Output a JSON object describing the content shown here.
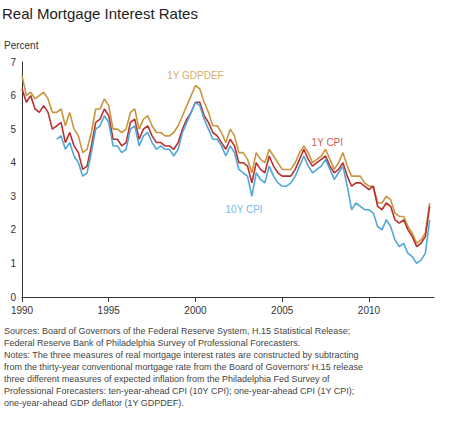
{
  "chart_data": {
    "type": "line",
    "title": "Real Mortgage Interest Rates",
    "y_label": "Percent",
    "x": [
      1990,
      1990.25,
      1990.5,
      1990.75,
      1991,
      1991.25,
      1991.5,
      1991.75,
      1992,
      1992.25,
      1992.5,
      1992.75,
      1993,
      1993.25,
      1993.5,
      1993.75,
      1994,
      1994.25,
      1994.5,
      1994.75,
      1995,
      1995.25,
      1995.5,
      1995.75,
      1996,
      1996.25,
      1996.5,
      1996.75,
      1997,
      1997.25,
      1997.5,
      1997.75,
      1998,
      1998.25,
      1998.5,
      1998.75,
      1999,
      1999.25,
      1999.5,
      1999.75,
      2000,
      2000.25,
      2000.5,
      2000.75,
      2001,
      2001.25,
      2001.5,
      2001.75,
      2002,
      2002.25,
      2002.5,
      2002.75,
      2003,
      2003.25,
      2003.5,
      2003.75,
      2004,
      2004.25,
      2004.5,
      2004.75,
      2005,
      2005.25,
      2005.5,
      2005.75,
      2006,
      2006.25,
      2006.5,
      2006.75,
      2007,
      2007.25,
      2007.5,
      2007.75,
      2008,
      2008.25,
      2008.5,
      2008.75,
      2009,
      2009.25,
      2009.5,
      2009.75,
      2010,
      2010.25,
      2010.5,
      2010.75,
      2011,
      2011.25,
      2011.5,
      2011.75,
      2012,
      2012.25,
      2012.5,
      2012.75,
      2013,
      2013.25,
      2013.5
    ],
    "series": [
      {
        "name": "1Y GDPDEF",
        "color": "#c8963e",
        "values": [
          6.6,
          6.0,
          6.1,
          5.9,
          6.0,
          6.1,
          5.9,
          5.5,
          5.5,
          5.6,
          5.1,
          5.5,
          5.0,
          4.8,
          4.3,
          4.4,
          4.9,
          5.6,
          5.6,
          5.9,
          5.7,
          5.0,
          5.0,
          4.9,
          5.0,
          5.5,
          5.6,
          5.0,
          5.3,
          5.4,
          5.1,
          4.9,
          4.9,
          4.8,
          4.8,
          4.9,
          5.1,
          5.4,
          5.7,
          6.0,
          6.3,
          6.2,
          5.8,
          5.5,
          5.1,
          5.1,
          4.9,
          4.6,
          5.0,
          4.8,
          4.3,
          4.3,
          4.1,
          3.7,
          4.3,
          4.1,
          4.0,
          4.4,
          4.2,
          4.0,
          3.8,
          3.8,
          3.8,
          4.0,
          4.3,
          4.5,
          4.3,
          4.0,
          4.1,
          4.2,
          4.4,
          4.1,
          3.8,
          4.0,
          4.3,
          3.9,
          3.6,
          3.6,
          3.6,
          3.4,
          3.3,
          3.3,
          2.8,
          2.8,
          3.0,
          2.9,
          2.5,
          2.4,
          2.4,
          2.1,
          1.9,
          1.6,
          1.7,
          1.9,
          2.8
        ]
      },
      {
        "name": "1Y CPI",
        "color": "#b8312f",
        "values": [
          6.2,
          5.8,
          6.0,
          5.6,
          5.5,
          5.7,
          5.5,
          5.0,
          5.1,
          5.2,
          4.6,
          4.9,
          4.5,
          4.3,
          3.8,
          3.9,
          4.5,
          5.2,
          5.3,
          5.6,
          5.4,
          4.7,
          4.7,
          4.5,
          4.6,
          5.2,
          5.3,
          4.7,
          5.0,
          5.1,
          4.8,
          4.6,
          4.6,
          4.5,
          4.5,
          4.4,
          4.6,
          5.0,
          5.3,
          5.5,
          5.8,
          5.8,
          5.4,
          5.2,
          4.9,
          4.8,
          4.6,
          4.4,
          4.7,
          4.5,
          4.0,
          4.0,
          3.9,
          3.4,
          4.0,
          3.8,
          3.7,
          4.2,
          3.9,
          3.7,
          3.6,
          3.6,
          3.6,
          3.8,
          4.1,
          4.4,
          4.1,
          3.9,
          4.0,
          4.1,
          4.2,
          3.9,
          3.7,
          3.8,
          4.0,
          3.6,
          3.3,
          3.4,
          3.4,
          3.3,
          3.2,
          3.3,
          2.7,
          2.6,
          2.8,
          2.7,
          2.3,
          2.2,
          2.3,
          2.0,
          1.8,
          1.5,
          1.6,
          1.8,
          2.7
        ]
      },
      {
        "name": "10Y CPI",
        "color": "#4fa8d8",
        "values": [
          null,
          null,
          null,
          null,
          null,
          null,
          null,
          null,
          4.7,
          4.8,
          4.4,
          4.6,
          4.2,
          4.0,
          3.6,
          3.7,
          4.3,
          5.0,
          5.1,
          5.4,
          5.2,
          4.5,
          4.5,
          4.3,
          4.4,
          5.0,
          5.1,
          4.5,
          4.8,
          4.9,
          4.6,
          4.4,
          4.5,
          4.4,
          4.4,
          4.2,
          4.4,
          4.9,
          5.2,
          5.5,
          5.8,
          5.7,
          5.3,
          5.0,
          4.7,
          4.7,
          4.5,
          4.2,
          4.5,
          4.3,
          3.8,
          3.7,
          3.6,
          3.0,
          3.7,
          3.5,
          3.4,
          3.9,
          3.6,
          3.4,
          3.3,
          3.3,
          3.4,
          3.6,
          3.9,
          4.2,
          3.9,
          3.7,
          3.8,
          3.9,
          4.1,
          3.8,
          3.5,
          3.7,
          3.9,
          3.3,
          2.6,
          2.8,
          2.7,
          2.6,
          2.6,
          2.5,
          2.1,
          2.0,
          2.3,
          2.1,
          1.7,
          1.5,
          1.6,
          1.3,
          1.2,
          1.0,
          1.1,
          1.3,
          2.3
        ]
      }
    ],
    "annotations": [
      {
        "text": "1Y GDPDEF",
        "x": 2000,
        "y": 6.6
      },
      {
        "text": "1Y CPI",
        "x": 2007.6,
        "y": 4.6
      },
      {
        "text": "10Y CPI",
        "x": 2002.8,
        "y": 2.6
      }
    ],
    "xlim": [
      1990,
      2013.75
    ],
    "xticks": [
      1990,
      1995,
      2000,
      2005,
      2010
    ],
    "ylim": [
      0,
      7
    ],
    "yticks": [
      0,
      1,
      2,
      3,
      4,
      5,
      6,
      7
    ],
    "grid": false,
    "sources": [
      "Sources: Board of Governors of the Federal Reserve System, H.15 Statistical Release;",
      "Federal Reserve Bank of Philadelphia Survey of Professional Forecasters."
    ],
    "notes": [
      "Notes: The three measures of real mortgage interest rates are constructed by subtracting",
      "from the thirty-year conventional mortgage rate from the Board of Governors' H.15 release",
      "three different measures of expected inflation from the Philadelphia Fed Survey of",
      "Professional Forecasters: ten-year-ahead CPI (10Y CPI); one-year-ahead CPI (1Y CPI);",
      "one-year-ahead GDP deflator (1Y GDPDEF)."
    ]
  }
}
